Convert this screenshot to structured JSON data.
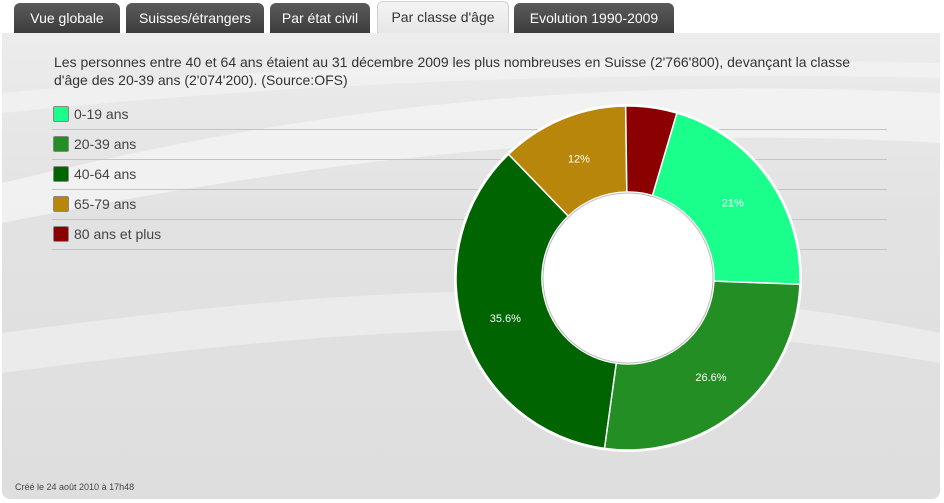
{
  "tabs": [
    {
      "label": "Vue globale",
      "active": false
    },
    {
      "label": "Suisses/étrangers",
      "active": false
    },
    {
      "label": "Par état civil",
      "active": false
    },
    {
      "label": "Par classe d'âge",
      "active": true
    },
    {
      "label": "Evolution 1990-2009",
      "active": false
    }
  ],
  "description": "Les personnes entre 40 et 64 ans étaient au 31 décembre 2009 les plus nombreuses en Suisse (2'766'800), devançant la classe d'âge des 20-39 ans (2'074'200). (Source:OFS)",
  "footer": "Créé le 24 août 2010 à 17h48",
  "chart_data": {
    "type": "pie",
    "donut": true,
    "categories": [
      "0-19 ans",
      "20-39 ans",
      "40-64 ans",
      "65-79 ans",
      "80 ans et plus"
    ],
    "values": [
      21,
      26.6,
      35.6,
      12,
      4.8
    ],
    "labels": [
      "21%",
      "26.6%",
      "35.6%",
      "12%",
      ""
    ],
    "colors": [
      "#1aff8c",
      "#238e23",
      "#006400",
      "#b8860b",
      "#8b0000"
    ],
    "legend_position": "left"
  }
}
